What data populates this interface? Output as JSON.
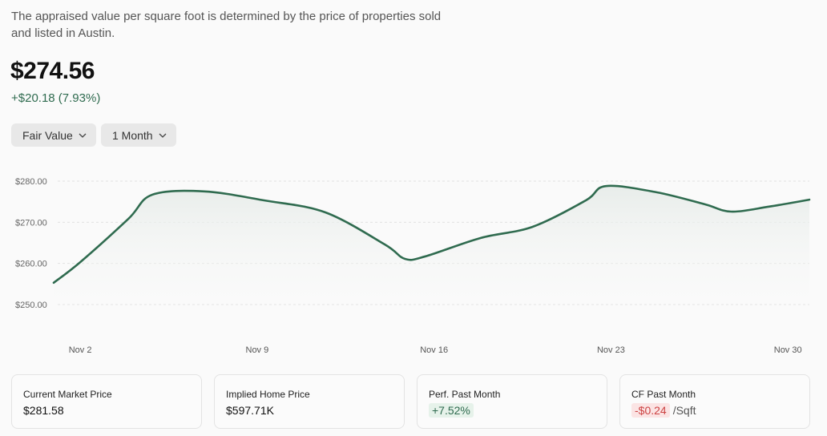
{
  "description": "The appraised value per square foot is determined by the price of properties sold and listed in Austin.",
  "price": "$274.56",
  "change": "+$20.18 (7.93%)",
  "dropdowns": [
    {
      "label": "Fair Value"
    },
    {
      "label": "1 Month"
    }
  ],
  "colors": {
    "line": "#2f6b4f",
    "positive": "#2f6b4f",
    "negative": "#cc4444"
  },
  "chart_data": {
    "type": "line",
    "y_ticks": [
      {
        "value": 280,
        "label": "$280.00"
      },
      {
        "value": 270,
        "label": "$270.00"
      },
      {
        "value": 260,
        "label": "$260.00"
      },
      {
        "value": 250,
        "label": "$250.00"
      }
    ],
    "x_ticks": [
      {
        "value": 2,
        "label": "Nov 2"
      },
      {
        "value": 9,
        "label": "Nov 9"
      },
      {
        "value": 16,
        "label": "Nov 16"
      },
      {
        "value": 23,
        "label": "Nov 23"
      },
      {
        "value": 30,
        "label": "Nov 30"
      }
    ],
    "ylim": [
      246,
      284
    ],
    "xlim": [
      0.95,
      30.85
    ],
    "grid": true,
    "series": [
      {
        "name": "Fair Value",
        "x": [
          0.95,
          2,
          3.9,
          4.85,
          6.9,
          9.3,
          11.7,
          14.05,
          14.85,
          15.65,
          17.85,
          19.9,
          22.0,
          22.8,
          24.8,
          26.7,
          27.75,
          29.25,
          30.85
        ],
        "values": [
          255.3,
          260.3,
          270.8,
          276.7,
          277.5,
          275.3,
          272.4,
          264.6,
          261.1,
          261.7,
          266.2,
          268.9,
          275.3,
          278.8,
          277.3,
          274.4,
          272.6,
          273.8,
          275.5
        ]
      }
    ]
  },
  "cards": [
    {
      "label": "Current Market Price",
      "value": "$281.58"
    },
    {
      "label": "Implied Home Price",
      "value": "$597.71K"
    },
    {
      "label": "Perf. Past Month",
      "value": "+7.52%"
    },
    {
      "label": "CF Past Month",
      "value": "-$0.24",
      "unit": "/Sqft"
    }
  ]
}
